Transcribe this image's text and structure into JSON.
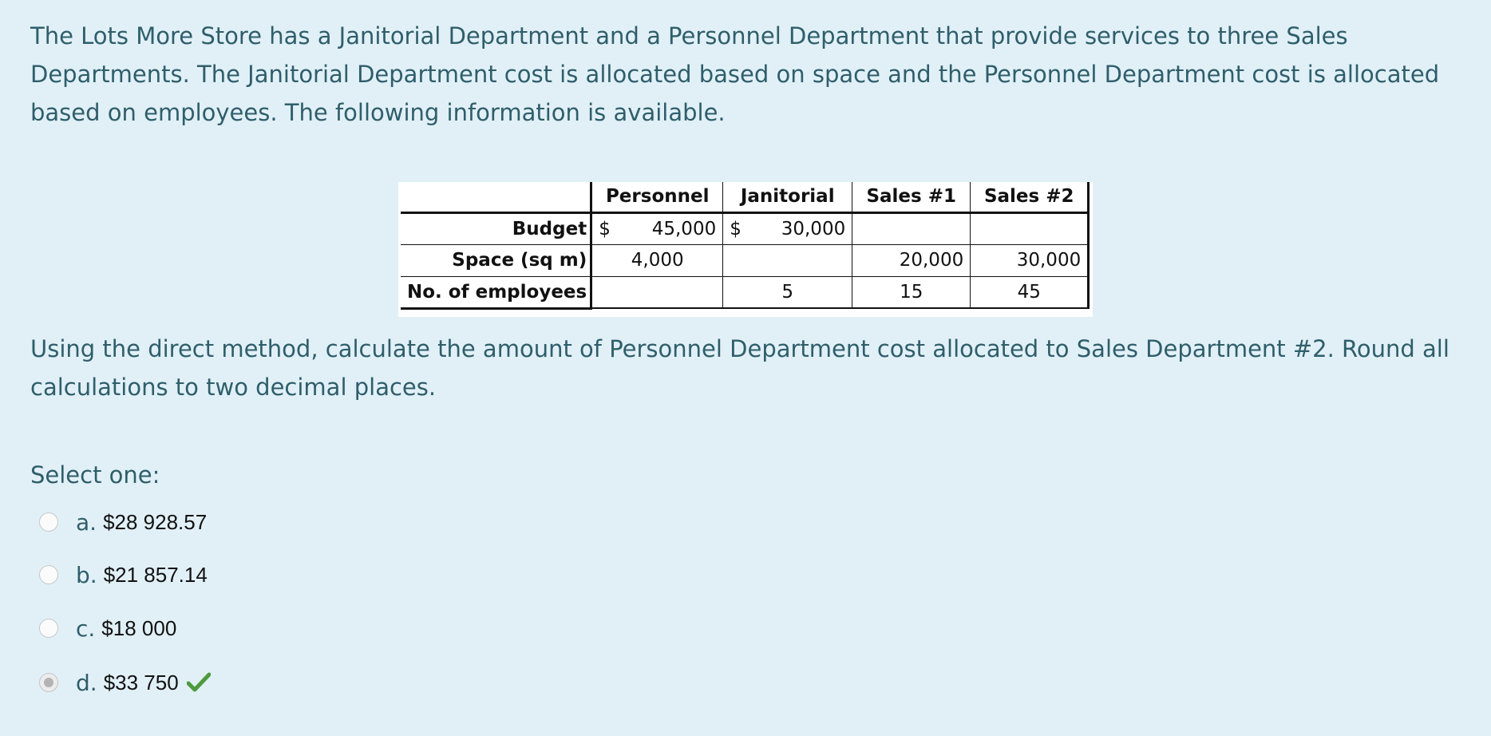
{
  "question": {
    "intro": "The Lots More Store has a Janitorial Department and a Personnel Department that provide services to three Sales Departments. The Janitorial Department cost is allocated based on space and the Personnel Department cost is allocated based on employees. The following information is available.",
    "instructions": "Using the direct method, calculate the amount of Personnel Department cost allocated to Sales Department #2. Round all calculations to two decimal places."
  },
  "table": {
    "headers": [
      "Personnel",
      "Janitorial",
      "Sales #1",
      "Sales #2"
    ],
    "rows": [
      {
        "label": "Budget",
        "personnel_currency": "$",
        "personnel_value": "45,000",
        "janitorial_currency": "$",
        "janitorial_value": "30,000",
        "sales1": "",
        "sales2": ""
      },
      {
        "label": "Space (sq m)",
        "personnel_value": "4,000",
        "janitorial_value": "",
        "sales1": "20,000",
        "sales2": "30,000"
      },
      {
        "label": "No. of employees",
        "personnel_value": "",
        "janitorial_value": "5",
        "sales1": "15",
        "sales2": "45"
      }
    ]
  },
  "answer": {
    "prompt": "Select one:",
    "options": [
      {
        "letter": "a.",
        "text": "$28 928.57",
        "selected": false
      },
      {
        "letter": "b.",
        "text": "$21 857.14",
        "selected": false
      },
      {
        "letter": "c.",
        "text": "$18 000",
        "selected": false
      },
      {
        "letter": "d.",
        "text": "$33 750",
        "selected": true,
        "feedback_icon": "check-icon"
      }
    ],
    "correct_color": "#4e9a3e"
  }
}
